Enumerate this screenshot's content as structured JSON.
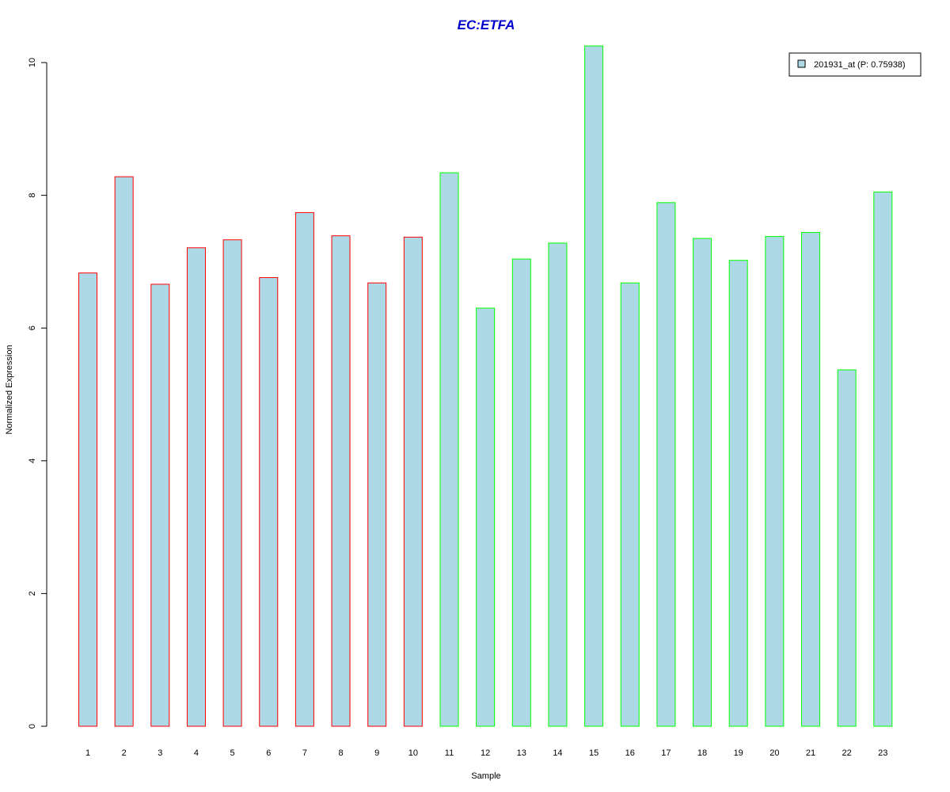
{
  "chart_data": {
    "type": "bar",
    "title": "EC:ETFA",
    "xlabel": "Sample",
    "ylabel": "Normalized Expression",
    "ylim": [
      0,
      10.25
    ],
    "yticks": [
      0,
      2,
      4,
      6,
      8,
      10
    ],
    "categories": [
      "1",
      "2",
      "3",
      "4",
      "5",
      "6",
      "7",
      "8",
      "9",
      "10",
      "11",
      "12",
      "13",
      "14",
      "15",
      "16",
      "17",
      "18",
      "19",
      "20",
      "21",
      "22",
      "23"
    ],
    "series": [
      {
        "name": "201931_at (P: 0.75938)",
        "values": [
          6.83,
          8.28,
          6.66,
          7.21,
          7.33,
          6.76,
          7.74,
          7.39,
          6.68,
          7.37,
          8.34,
          6.3,
          7.04,
          7.28,
          10.25,
          6.68,
          7.89,
          7.35,
          7.02,
          7.38,
          7.44,
          5.37,
          8.05
        ]
      }
    ],
    "groups": [
      {
        "samples": [
          1,
          2,
          3,
          4,
          5,
          6,
          7,
          8,
          9,
          10
        ],
        "border_color": "#ff0000"
      },
      {
        "samples": [
          11,
          12,
          13,
          14,
          15,
          16,
          17,
          18,
          19,
          20,
          21,
          22,
          23
        ],
        "border_color": "#00ff00"
      }
    ],
    "bar_fill": "#add8e6",
    "title_color": "#0000cd",
    "legend_position": "top-right",
    "grid": false
  }
}
